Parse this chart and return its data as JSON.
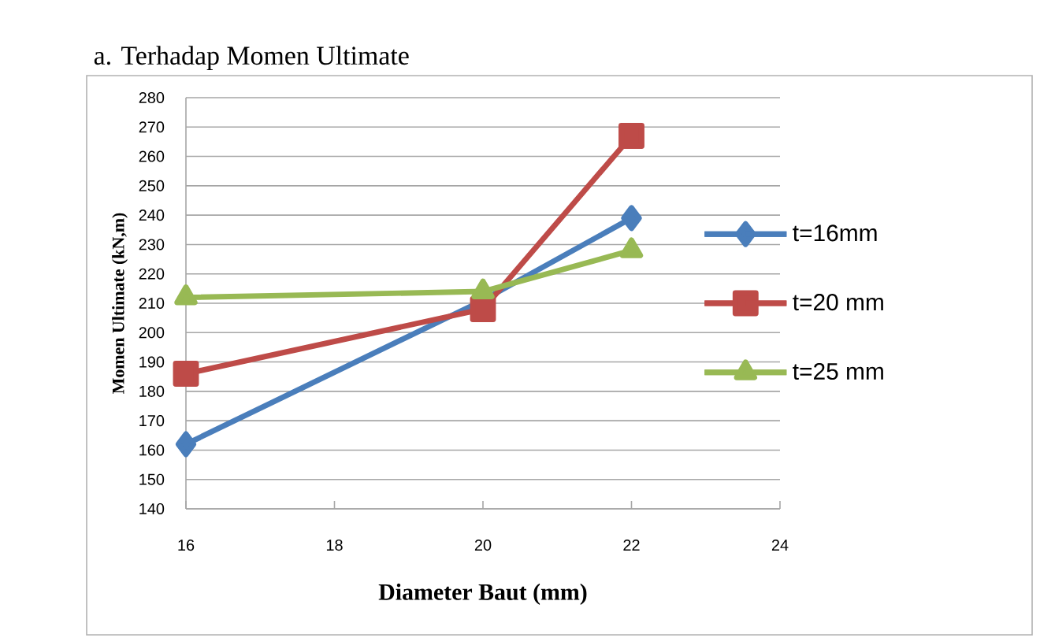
{
  "chart_data": {
    "type": "line",
    "title": "a.  Terhadap Momen Ultimate",
    "xlabel": "Diameter Baut (mm)",
    "ylabel": "Momen Ultimate (kN,m)",
    "x": [
      16,
      20,
      22
    ],
    "series": [
      {
        "name": "t=16mm",
        "color": "#4a7ebb",
        "marker": "diamond",
        "values": [
          162,
          211,
          239
        ]
      },
      {
        "name": "t=20 mm",
        "color": "#be4b48",
        "marker": "square",
        "values": [
          186,
          208,
          267
        ]
      },
      {
        "name": "t=25 mm",
        "color": "#98b954",
        "marker": "triangle",
        "values": [
          212,
          214,
          228
        ]
      }
    ],
    "xlim": [
      16,
      24
    ],
    "xticks": [
      16,
      18,
      20,
      22,
      24
    ],
    "ylim": [
      140,
      280
    ],
    "yticks": [
      140,
      150,
      160,
      170,
      180,
      190,
      200,
      210,
      220,
      230,
      240,
      250,
      260,
      270,
      280
    ],
    "grid": "y",
    "legend": "right",
    "line_style": "solid"
  }
}
